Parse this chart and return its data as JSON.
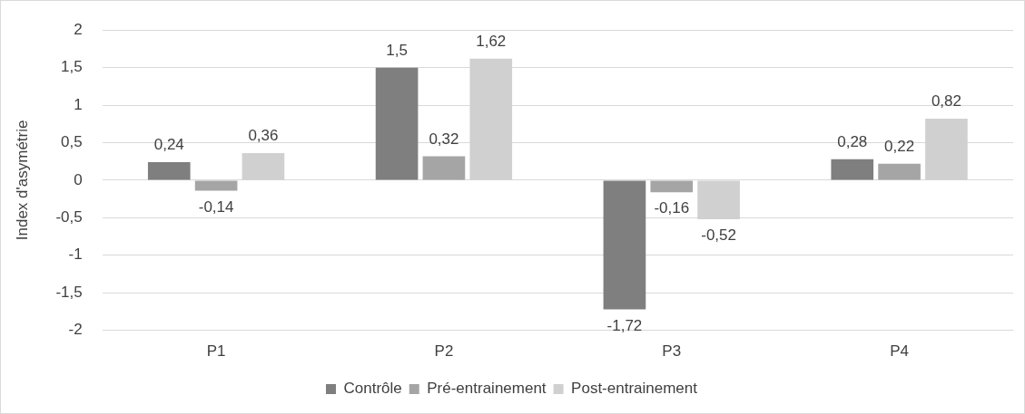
{
  "chart_data": {
    "type": "bar",
    "ylabel": "Index d'asymétrie",
    "categories": [
      "P1",
      "P2",
      "P3",
      "P4"
    ],
    "series": [
      {
        "name": "Contrôle",
        "color": "#7f7f7f",
        "values": [
          0.24,
          1.5,
          -1.72,
          0.28
        ],
        "value_labels": [
          "0,24",
          "1,5",
          "-1,72",
          "0,28"
        ]
      },
      {
        "name": "Pré-entrainement",
        "color": "#a5a5a5",
        "values": [
          -0.14,
          0.32,
          -0.16,
          0.22
        ],
        "value_labels": [
          "-0,14",
          "0,32",
          "-0,16",
          "0,22"
        ]
      },
      {
        "name": "Post-entrainement",
        "color": "#d0d0d0",
        "values": [
          0.36,
          1.62,
          -0.52,
          0.82
        ],
        "value_labels": [
          "0,36",
          "1,62",
          "-0,52",
          "0,82"
        ]
      }
    ],
    "ylim": [
      -2,
      2
    ],
    "yticks": [
      -2,
      {
        "value": -1.5,
        "label": "-1,5"
      },
      -1,
      {
        "value": -0.5,
        "label": "-0,5"
      },
      0,
      {
        "value": 0.5,
        "label": "0,5"
      },
      1,
      {
        "value": 1.5,
        "label": "1,5"
      },
      2
    ],
    "grid": "y",
    "legend": "bottom"
  }
}
